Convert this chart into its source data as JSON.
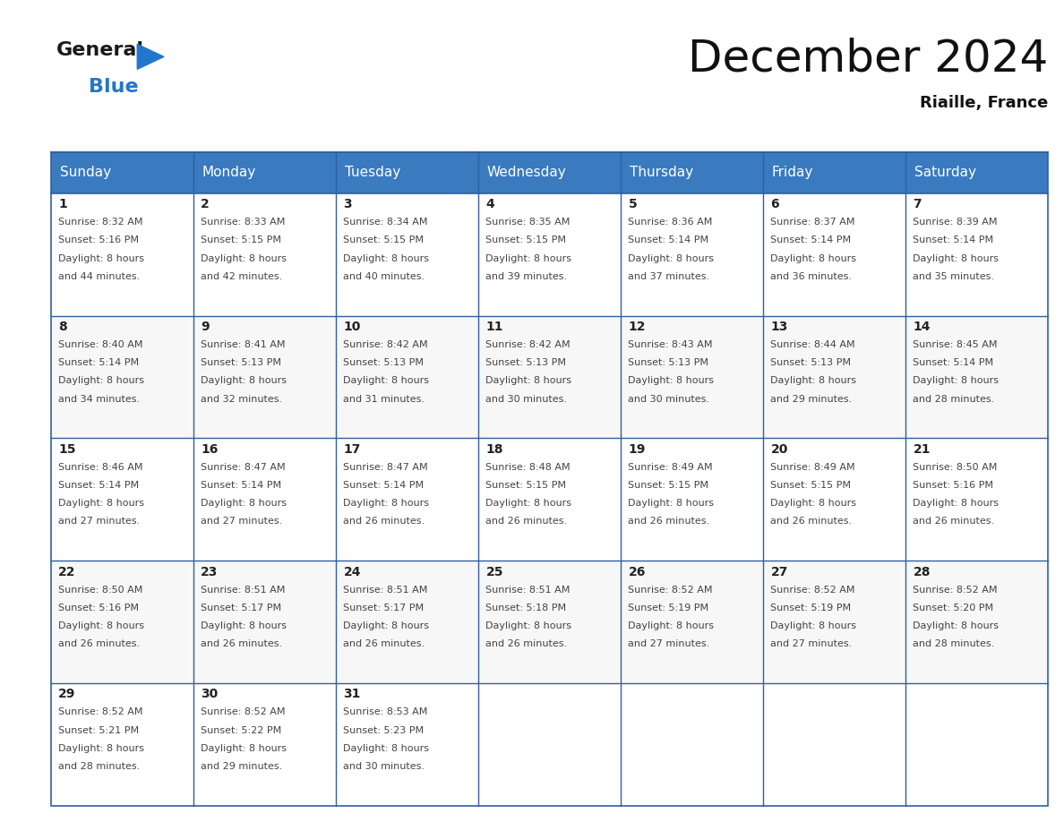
{
  "title": "December 2024",
  "subtitle": "Riaille, France",
  "header_color": "#3a7abf",
  "header_text_color": "#ffffff",
  "border_color": "#3060a0",
  "text_color": "#333333",
  "days_of_week": [
    "Sunday",
    "Monday",
    "Tuesday",
    "Wednesday",
    "Thursday",
    "Friday",
    "Saturday"
  ],
  "calendar_data": [
    [
      {
        "day": 1,
        "sunrise": "8:32 AM",
        "sunset": "5:16 PM",
        "daylight": "8 hours and 44 minutes"
      },
      {
        "day": 2,
        "sunrise": "8:33 AM",
        "sunset": "5:15 PM",
        "daylight": "8 hours and 42 minutes"
      },
      {
        "day": 3,
        "sunrise": "8:34 AM",
        "sunset": "5:15 PM",
        "daylight": "8 hours and 40 minutes"
      },
      {
        "day": 4,
        "sunrise": "8:35 AM",
        "sunset": "5:15 PM",
        "daylight": "8 hours and 39 minutes"
      },
      {
        "day": 5,
        "sunrise": "8:36 AM",
        "sunset": "5:14 PM",
        "daylight": "8 hours and 37 minutes"
      },
      {
        "day": 6,
        "sunrise": "8:37 AM",
        "sunset": "5:14 PM",
        "daylight": "8 hours and 36 minutes"
      },
      {
        "day": 7,
        "sunrise": "8:39 AM",
        "sunset": "5:14 PM",
        "daylight": "8 hours and 35 minutes"
      }
    ],
    [
      {
        "day": 8,
        "sunrise": "8:40 AM",
        "sunset": "5:14 PM",
        "daylight": "8 hours and 34 minutes"
      },
      {
        "day": 9,
        "sunrise": "8:41 AM",
        "sunset": "5:13 PM",
        "daylight": "8 hours and 32 minutes"
      },
      {
        "day": 10,
        "sunrise": "8:42 AM",
        "sunset": "5:13 PM",
        "daylight": "8 hours and 31 minutes"
      },
      {
        "day": 11,
        "sunrise": "8:42 AM",
        "sunset": "5:13 PM",
        "daylight": "8 hours and 30 minutes"
      },
      {
        "day": 12,
        "sunrise": "8:43 AM",
        "sunset": "5:13 PM",
        "daylight": "8 hours and 30 minutes"
      },
      {
        "day": 13,
        "sunrise": "8:44 AM",
        "sunset": "5:13 PM",
        "daylight": "8 hours and 29 minutes"
      },
      {
        "day": 14,
        "sunrise": "8:45 AM",
        "sunset": "5:14 PM",
        "daylight": "8 hours and 28 minutes"
      }
    ],
    [
      {
        "day": 15,
        "sunrise": "8:46 AM",
        "sunset": "5:14 PM",
        "daylight": "8 hours and 27 minutes"
      },
      {
        "day": 16,
        "sunrise": "8:47 AM",
        "sunset": "5:14 PM",
        "daylight": "8 hours and 27 minutes"
      },
      {
        "day": 17,
        "sunrise": "8:47 AM",
        "sunset": "5:14 PM",
        "daylight": "8 hours and 26 minutes"
      },
      {
        "day": 18,
        "sunrise": "8:48 AM",
        "sunset": "5:15 PM",
        "daylight": "8 hours and 26 minutes"
      },
      {
        "day": 19,
        "sunrise": "8:49 AM",
        "sunset": "5:15 PM",
        "daylight": "8 hours and 26 minutes"
      },
      {
        "day": 20,
        "sunrise": "8:49 AM",
        "sunset": "5:15 PM",
        "daylight": "8 hours and 26 minutes"
      },
      {
        "day": 21,
        "sunrise": "8:50 AM",
        "sunset": "5:16 PM",
        "daylight": "8 hours and 26 minutes"
      }
    ],
    [
      {
        "day": 22,
        "sunrise": "8:50 AM",
        "sunset": "5:16 PM",
        "daylight": "8 hours and 26 minutes"
      },
      {
        "day": 23,
        "sunrise": "8:51 AM",
        "sunset": "5:17 PM",
        "daylight": "8 hours and 26 minutes"
      },
      {
        "day": 24,
        "sunrise": "8:51 AM",
        "sunset": "5:17 PM",
        "daylight": "8 hours and 26 minutes"
      },
      {
        "day": 25,
        "sunrise": "8:51 AM",
        "sunset": "5:18 PM",
        "daylight": "8 hours and 26 minutes"
      },
      {
        "day": 26,
        "sunrise": "8:52 AM",
        "sunset": "5:19 PM",
        "daylight": "8 hours and 27 minutes"
      },
      {
        "day": 27,
        "sunrise": "8:52 AM",
        "sunset": "5:19 PM",
        "daylight": "8 hours and 27 minutes"
      },
      {
        "day": 28,
        "sunrise": "8:52 AM",
        "sunset": "5:20 PM",
        "daylight": "8 hours and 28 minutes"
      }
    ],
    [
      {
        "day": 29,
        "sunrise": "8:52 AM",
        "sunset": "5:21 PM",
        "daylight": "8 hours and 28 minutes"
      },
      {
        "day": 30,
        "sunrise": "8:52 AM",
        "sunset": "5:22 PM",
        "daylight": "8 hours and 29 minutes"
      },
      {
        "day": 31,
        "sunrise": "8:53 AM",
        "sunset": "5:23 PM",
        "daylight": "8 hours and 30 minutes"
      },
      null,
      null,
      null,
      null
    ]
  ],
  "logo_color_general": "#1a1a1a",
  "logo_color_blue": "#2277cc",
  "logo_triangle_color": "#2277cc",
  "title_fontsize": 36,
  "subtitle_fontsize": 13,
  "header_fontsize": 11,
  "day_num_fontsize": 10,
  "cell_text_fontsize": 8
}
